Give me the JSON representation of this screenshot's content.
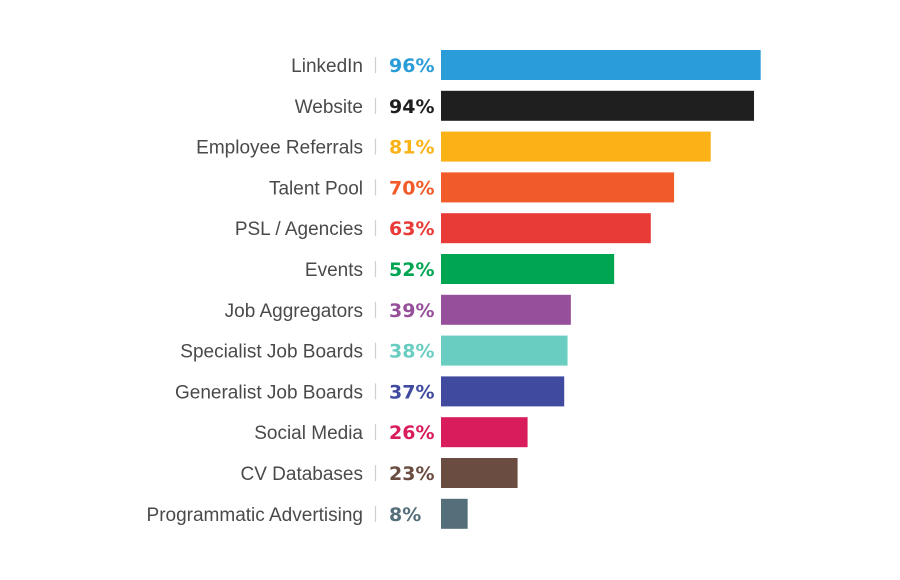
{
  "chart_data": {
    "type": "bar",
    "orientation": "horizontal",
    "title": "",
    "xlabel": "",
    "ylabel": "",
    "xlim": [
      0,
      100
    ],
    "grid": false,
    "legend": "none",
    "unit_suffix": "%",
    "categories": [
      "LinkedIn",
      "Website",
      "Employee Referrals",
      "Talent Pool",
      "PSL / Agencies",
      "Events",
      "Job Aggregators",
      "Specialist Job Boards",
      "Generalist Job Boards",
      "Social Media",
      "CV Databases",
      "Programmatic Advertising"
    ],
    "values": [
      96,
      94,
      81,
      70,
      63,
      52,
      39,
      38,
      37,
      26,
      23,
      8
    ],
    "value_labels": [
      "96%",
      "94%",
      "81%",
      "70%",
      "63%",
      "52%",
      "39%",
      "38%",
      "37%",
      "26%",
      "23%",
      "8%"
    ],
    "colors": [
      "#2a9cd8",
      "#1f1f1f",
      "#fbb216",
      "#f15a29",
      "#e83a36",
      "#00a551",
      "#96509b",
      "#6acdc2",
      "#404a9f",
      "#d91c5c",
      "#6a4c41",
      "#546e7a"
    ]
  }
}
